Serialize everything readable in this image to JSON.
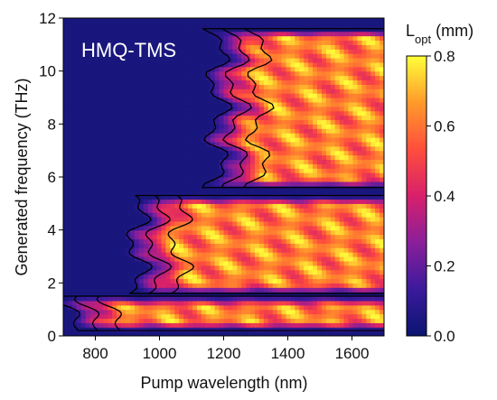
{
  "chart_data": {
    "type": "heatmap",
    "title": "HMQ-TMS",
    "xlabel": "Pump wavelength (nm)",
    "ylabel": "Generated frequency (THz)",
    "xlim": [
      700,
      1700
    ],
    "ylim": [
      0,
      12
    ],
    "xticks": [
      "800",
      "1000",
      "1200",
      "1400",
      "1600"
    ],
    "yticks": [
      "0",
      "2",
      "4",
      "6",
      "8",
      "10",
      "12"
    ],
    "colorbar": {
      "label_main": "L",
      "label_sub": "opt",
      "label_unit": " (mm)",
      "range": [
        0.0,
        0.8
      ],
      "ticks": [
        "0.0",
        "0.2",
        "0.4",
        "0.6",
        "0.8"
      ],
      "colormap": [
        "#0a1570",
        "#3b1a9c",
        "#8a1f9a",
        "#d8206b",
        "#ff4e3c",
        "#ff9a2a",
        "#ffff3a"
      ]
    },
    "contour_levels": [
      0.2,
      0.4,
      0.6
    ],
    "bands": [
      {
        "range_thz": [
          0.2,
          1.5
        ],
        "onset_nm": 720,
        "peak": 0.8
      },
      {
        "range_thz": [
          1.6,
          5.3
        ],
        "onset_nm": 930,
        "peak": 0.8
      },
      {
        "range_thz": [
          5.6,
          11.6
        ],
        "onset_nm": 1180,
        "peak": 0.8
      }
    ]
  }
}
